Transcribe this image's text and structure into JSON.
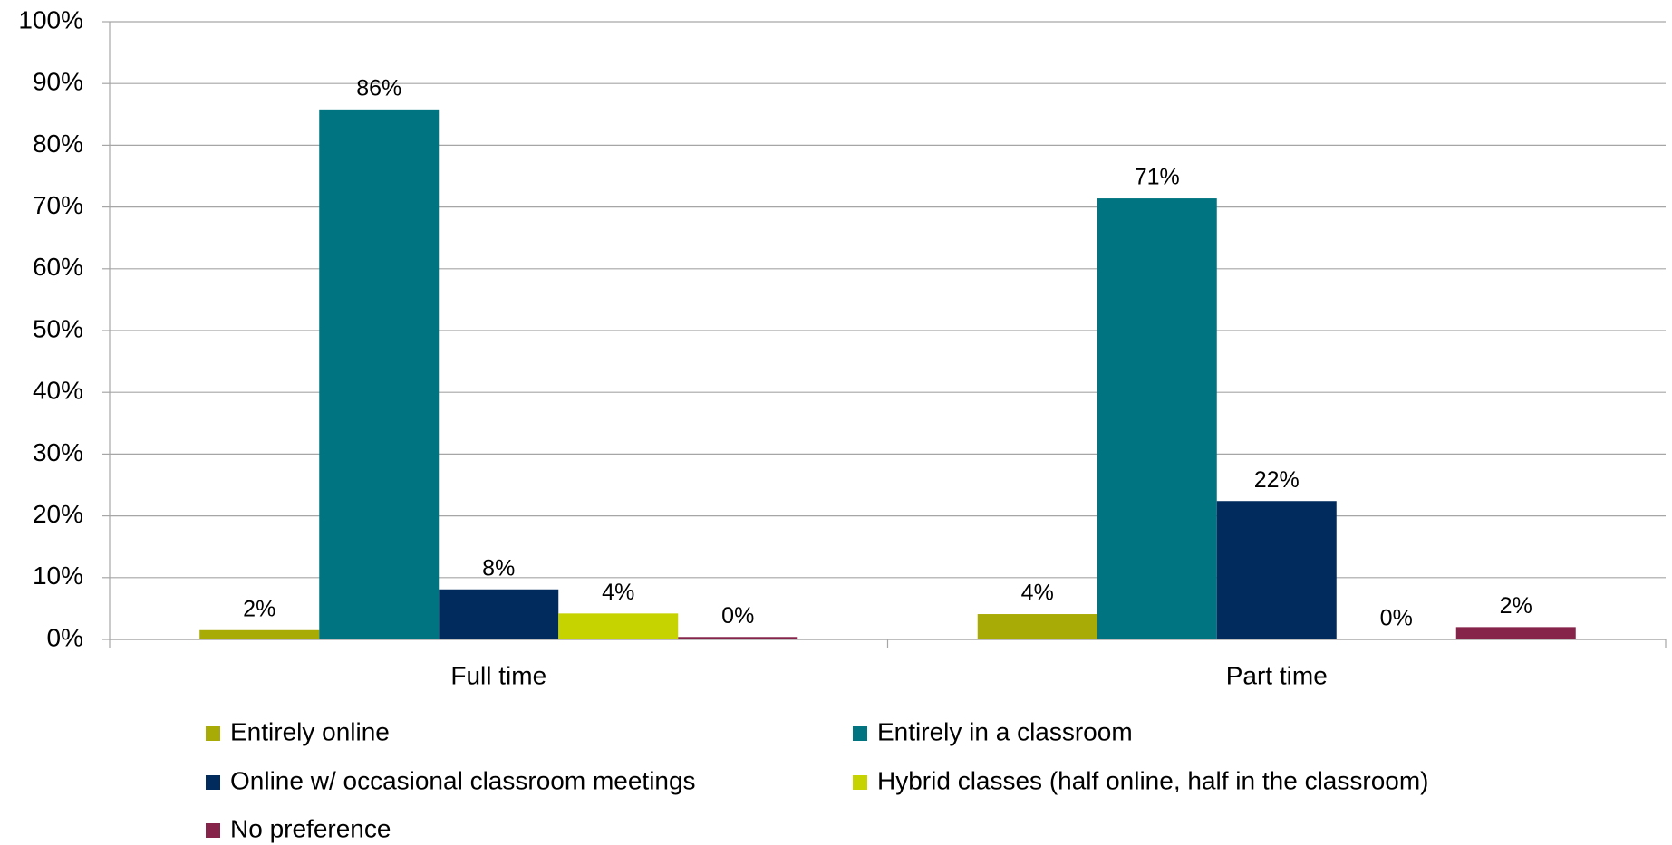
{
  "chart_data": {
    "type": "bar",
    "categories": [
      "Full time",
      "Part time"
    ],
    "series": [
      {
        "name": "Entirely online",
        "color": "#a8ab05",
        "values": [
          1.5,
          4.1
        ],
        "value_labels": [
          "2%",
          "4%"
        ]
      },
      {
        "name": "Entirely in a classroom",
        "color": "#007581",
        "values": [
          85.8,
          71.4
        ],
        "value_labels": [
          "86%",
          "71%"
        ]
      },
      {
        "name": "Online w/ occasional classroom meetings",
        "color": "#002b5c",
        "values": [
          8.1,
          22.4
        ],
        "value_labels": [
          "8%",
          "22%"
        ]
      },
      {
        "name": "Hybrid classes (half online, half in the classroom)",
        "color": "#c6d300",
        "values": [
          4.2,
          0
        ],
        "value_labels": [
          "4%",
          "0%"
        ]
      },
      {
        "name": "No preference",
        "color": "#86244a",
        "values": [
          0.4,
          2.0
        ],
        "value_labels": [
          "0%",
          "2%"
        ]
      }
    ],
    "ylim": [
      0,
      100
    ],
    "yticks": [
      {
        "value": 0,
        "label": "0%"
      },
      {
        "value": 10,
        "label": "10%"
      },
      {
        "value": 20,
        "label": "20%"
      },
      {
        "value": 30,
        "label": "30%"
      },
      {
        "value": 40,
        "label": "40%"
      },
      {
        "value": 50,
        "label": "50%"
      },
      {
        "value": 60,
        "label": "60%"
      },
      {
        "value": 70,
        "label": "70%"
      },
      {
        "value": 80,
        "label": "80%"
      },
      {
        "value": 90,
        "label": "90%"
      },
      {
        "value": 100,
        "label": "100%"
      }
    ],
    "grid": true
  }
}
